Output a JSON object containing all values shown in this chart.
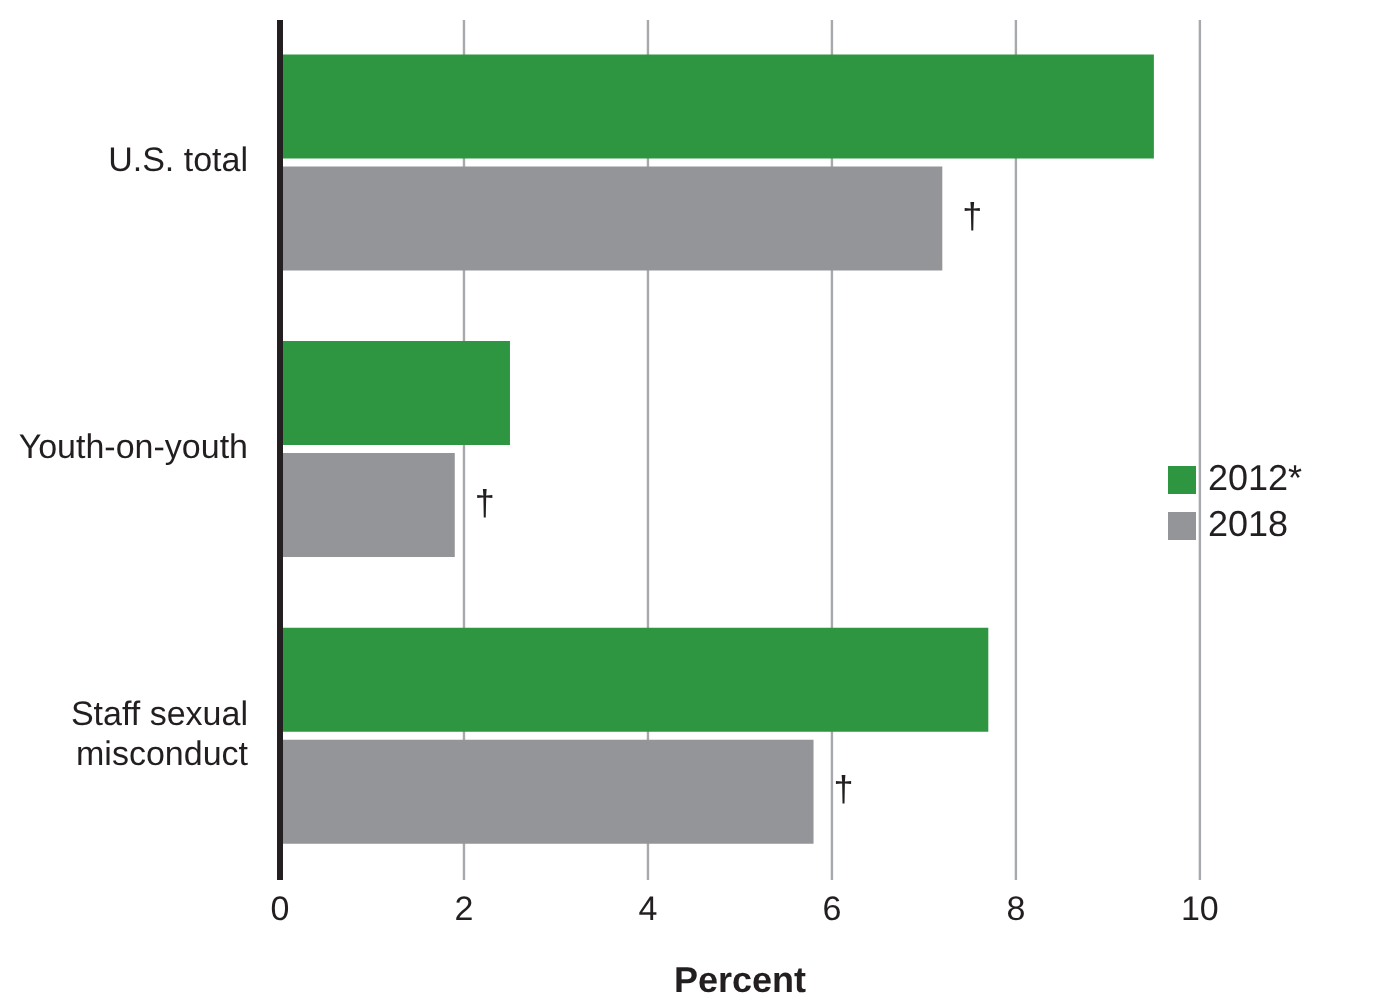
{
  "chart_data": {
    "type": "bar",
    "orientation": "horizontal",
    "xlabel": "Percent",
    "categories": [
      "U.S. total",
      "Youth-on-youth",
      "Staff sexual misconduct"
    ],
    "series": [
      {
        "name": "2012*",
        "color": "#2e9640",
        "values": [
          9.5,
          2.5,
          7.7
        ]
      },
      {
        "name": "2018",
        "color": "#949599",
        "values": [
          7.2,
          1.9,
          5.8
        ],
        "value_labels": [
          "†",
          "†",
          "†"
        ]
      }
    ],
    "xlim": [
      0,
      10
    ],
    "xticks": [
      0,
      2,
      4,
      6,
      8,
      10
    ],
    "grid": "x",
    "legend": "right"
  }
}
